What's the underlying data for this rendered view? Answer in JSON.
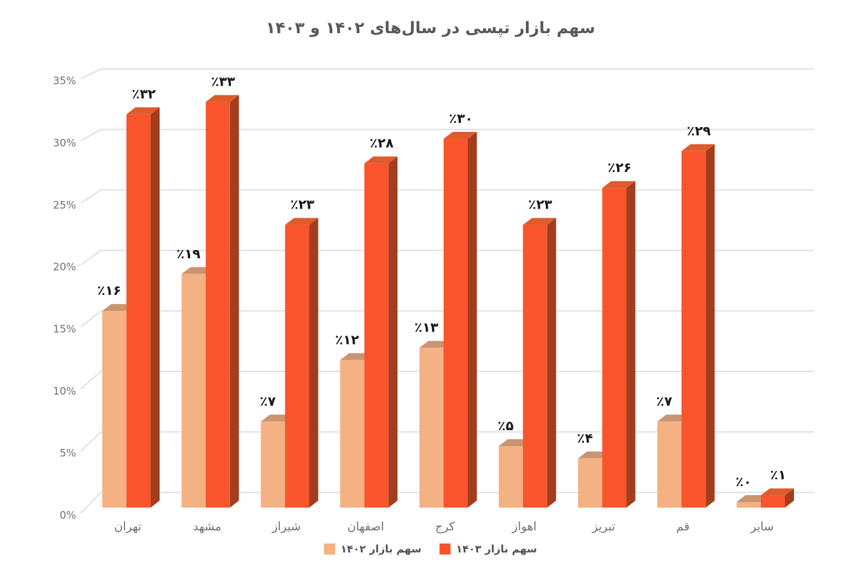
{
  "page": {
    "background": "#ffffff"
  },
  "chart_data": {
    "type": "bar",
    "title": "سهم بازار تپسی در سال‌های ۱۴۰۲ و ۱۴۰۳",
    "categories": [
      "تهران",
      "مشهد",
      "شیراز",
      "اصفهان",
      "کرج",
      "اهواز",
      "تبریز",
      "قم",
      "سایر"
    ],
    "series": [
      {
        "name": "سهم بازار ۱۴۰۲",
        "values": [
          16,
          19,
          7,
          12,
          13,
          5,
          4,
          7,
          0
        ],
        "value_labels": [
          "٪۱۶",
          "٪۱۹",
          "٪۷",
          "٪۱۲",
          "٪۱۳",
          "٪۵",
          "٪۴",
          "٪۷",
          "٪۰"
        ],
        "color": "#F4B183",
        "top_color": "#C9946F",
        "side_color": "#C9946F"
      },
      {
        "name": "سهم بازار ۱۴۰۳",
        "values": [
          32,
          33,
          23,
          28,
          30,
          23,
          26,
          29,
          1
        ],
        "value_labels": [
          "٪۳۲",
          "٪۳۳",
          "٪۲۳",
          "٪۲۸",
          "٪۳۰",
          "٪۲۳",
          "٪۲۶",
          "٪۲۹",
          "٪۱"
        ],
        "color": "#F8552D",
        "top_color": "#DE5B2C",
        "side_color": "#A23E1E"
      }
    ],
    "y_ticks": [
      "0%",
      "5%",
      "10%",
      "15%",
      "20%",
      "25%",
      "30%",
      "35%"
    ],
    "ylim": [
      0,
      35
    ],
    "grid": true,
    "legend_position": "bottom",
    "colors": {
      "grid": "#DBDBD9",
      "title": "#56585C",
      "tick": "#6F6F6F",
      "category": "#6B7078",
      "value_label": "#17181A",
      "legend_text": "#4E525A"
    }
  }
}
